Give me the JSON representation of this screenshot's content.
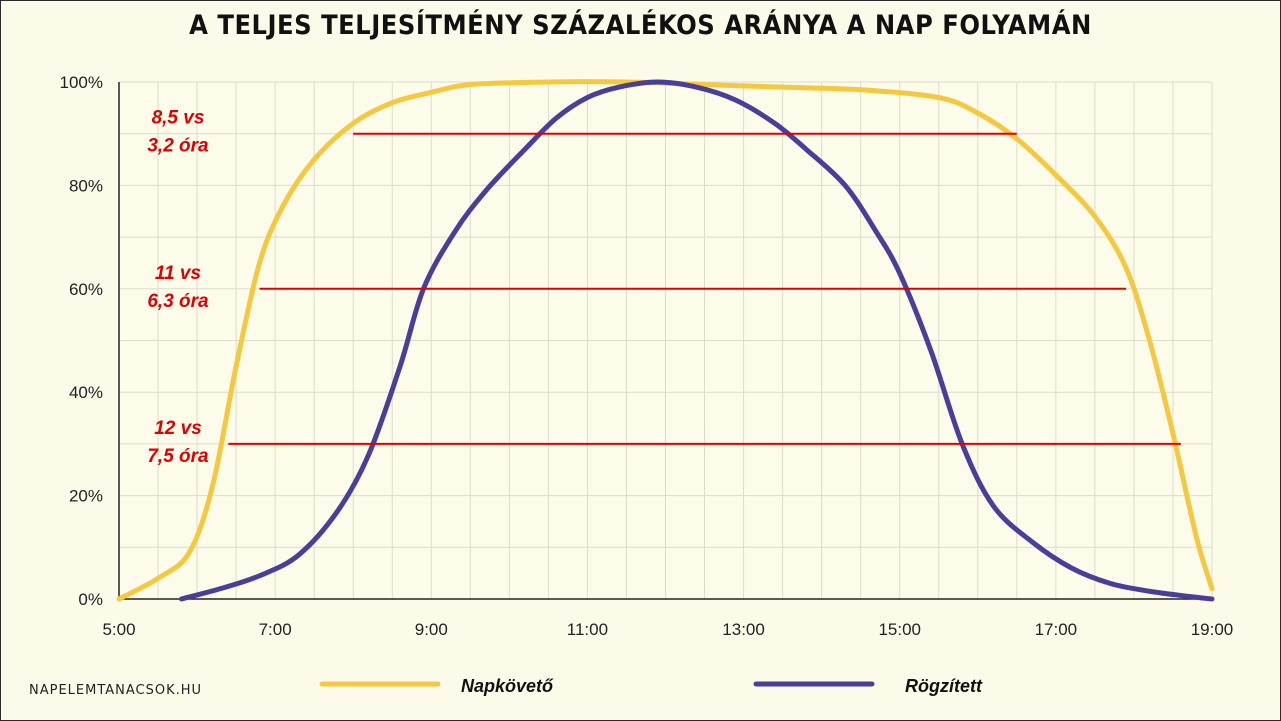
{
  "chart_data": {
    "type": "line",
    "title": "A TELJES TELJESÍTMÉNY SZÁZALÉKOS ARÁNYA A NAP FOLYAMÁN",
    "xlabel": "",
    "ylabel": "",
    "xlim": [
      5,
      19
    ],
    "ylim": [
      0,
      100
    ],
    "grid": true,
    "legend_position": "bottom",
    "x_ticks": [
      {
        "value": 5,
        "label": "5:00"
      },
      {
        "value": 7,
        "label": "7:00"
      },
      {
        "value": 9,
        "label": "9:00"
      },
      {
        "value": 11,
        "label": "11:00"
      },
      {
        "value": 13,
        "label": "13:00"
      },
      {
        "value": 15,
        "label": "15:00"
      },
      {
        "value": 17,
        "label": "17:00"
      },
      {
        "value": 19,
        "label": "19:00"
      }
    ],
    "y_ticks": [
      {
        "value": 0,
        "label": "0%"
      },
      {
        "value": 20,
        "label": "20%"
      },
      {
        "value": 40,
        "label": "40%"
      },
      {
        "value": 60,
        "label": "60%"
      },
      {
        "value": 80,
        "label": "80%"
      },
      {
        "value": 100,
        "label": "100%"
      }
    ],
    "series": [
      {
        "name": "Napkövető",
        "color": "#f5c842",
        "points": [
          [
            5.0,
            0
          ],
          [
            5.5,
            4
          ],
          [
            5.9,
            9
          ],
          [
            6.2,
            22
          ],
          [
            6.5,
            45
          ],
          [
            6.8,
            65
          ],
          [
            7.1,
            76
          ],
          [
            7.5,
            85
          ],
          [
            8.0,
            92
          ],
          [
            8.5,
            96
          ],
          [
            9.0,
            98
          ],
          [
            9.5,
            99.5
          ],
          [
            10.5,
            100
          ],
          [
            11.5,
            100
          ],
          [
            12.5,
            99.5
          ],
          [
            13.5,
            99
          ],
          [
            14.5,
            98.5
          ],
          [
            15.5,
            97
          ],
          [
            16.0,
            94
          ],
          [
            16.5,
            89
          ],
          [
            17.0,
            82
          ],
          [
            17.5,
            74
          ],
          [
            17.9,
            64
          ],
          [
            18.2,
            50
          ],
          [
            18.5,
            32
          ],
          [
            18.8,
            12
          ],
          [
            19.0,
            2
          ]
        ]
      },
      {
        "name": "Rögzített",
        "color": "#4a3e9b",
        "points": [
          [
            5.8,
            0
          ],
          [
            6.3,
            2
          ],
          [
            6.8,
            4.5
          ],
          [
            7.3,
            8.5
          ],
          [
            7.8,
            17
          ],
          [
            8.2,
            28
          ],
          [
            8.6,
            45
          ],
          [
            8.9,
            60
          ],
          [
            9.3,
            71
          ],
          [
            9.7,
            79
          ],
          [
            10.2,
            87
          ],
          [
            10.6,
            93
          ],
          [
            11.0,
            97
          ],
          [
            11.4,
            99
          ],
          [
            11.9,
            100
          ],
          [
            12.4,
            99
          ],
          [
            12.9,
            96.5
          ],
          [
            13.4,
            92
          ],
          [
            13.8,
            87
          ],
          [
            14.3,
            80
          ],
          [
            14.7,
            71
          ],
          [
            15.0,
            63
          ],
          [
            15.4,
            48
          ],
          [
            15.8,
            30
          ],
          [
            16.2,
            18
          ],
          [
            16.7,
            11
          ],
          [
            17.2,
            6
          ],
          [
            17.7,
            3
          ],
          [
            18.2,
            1.5
          ],
          [
            18.7,
            0.5
          ],
          [
            19.0,
            0
          ]
        ]
      }
    ],
    "annotations": [
      {
        "level": 90,
        "x_start": 8.0,
        "x_end": 16.5,
        "lines": [
          "8,5 vs",
          "3,2 óra"
        ]
      },
      {
        "level": 60,
        "x_start": 6.8,
        "x_end": 17.9,
        "lines": [
          "11 vs",
          "6,3 óra"
        ]
      },
      {
        "level": 30,
        "x_start": 6.4,
        "x_end": 18.6,
        "lines": [
          "12 vs",
          "7,5 óra"
        ]
      }
    ],
    "annotation_color": "#e00000"
  },
  "watermark": "NAPELEMTANACSOK.HU"
}
